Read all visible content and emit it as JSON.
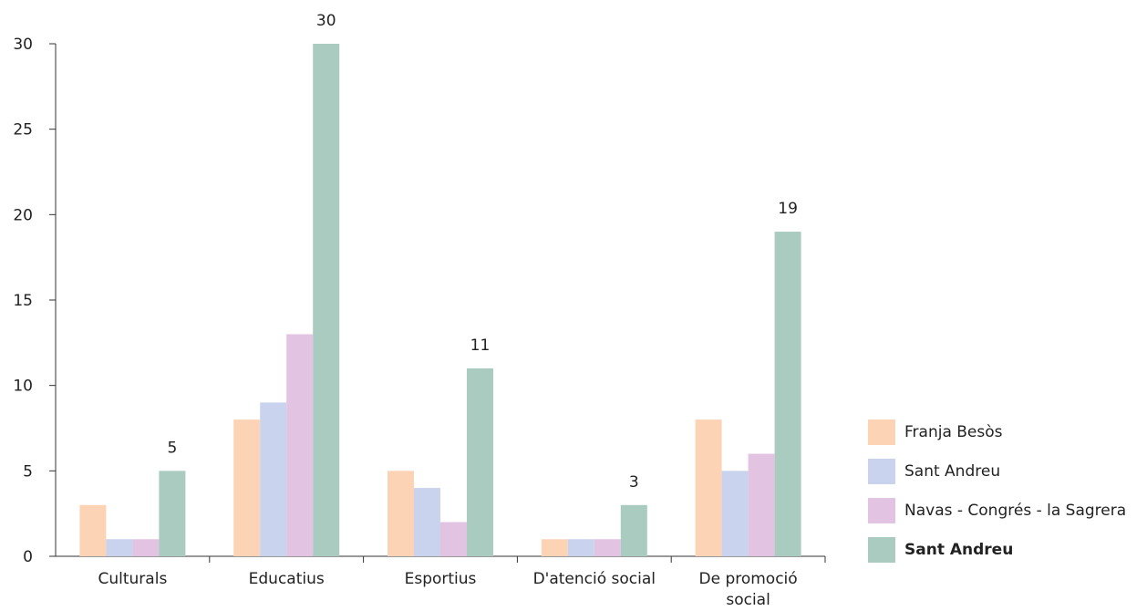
{
  "chart_data": {
    "type": "bar",
    "categories": [
      "Culturals",
      "Educatius",
      "Esportius",
      "D'atenció social",
      "De promoció social"
    ],
    "category_lines": [
      [
        "Culturals"
      ],
      [
        "Educatius"
      ],
      [
        "Esportius"
      ],
      [
        "D'atenció social"
      ],
      [
        "De promoció",
        "social"
      ]
    ],
    "series": [
      {
        "name": "Franja Besòs",
        "color": "#fdd3b6",
        "values": [
          3,
          8,
          5,
          1,
          8
        ]
      },
      {
        "name": "Sant Andreu",
        "color": "#c9d3ee",
        "values": [
          1,
          9,
          4,
          1,
          5
        ]
      },
      {
        "name": "Navas - Congrés - la Sagrera",
        "color": "#e2c3e2",
        "values": [
          1,
          13,
          2,
          1,
          6
        ]
      },
      {
        "name": "Sant Andreu",
        "color": "#a9cbc0",
        "values": [
          5,
          30,
          11,
          3,
          19
        ],
        "bold": true,
        "labeled": true
      }
    ],
    "y_ticks": [
      "0",
      "5",
      "10",
      "15",
      "20",
      "25",
      "30"
    ],
    "ylim": [
      0,
      30
    ],
    "legend_position": "right",
    "grid": false,
    "data_labels": [
      "5",
      "30",
      "11",
      "3",
      "19"
    ]
  }
}
